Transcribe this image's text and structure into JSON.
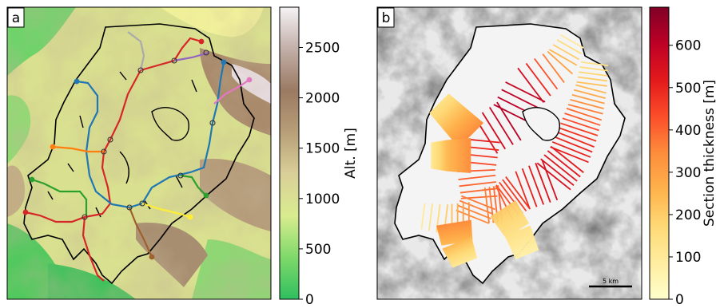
{
  "figure": {
    "panels": [
      {
        "label": "a"
      },
      {
        "label": "b"
      }
    ]
  },
  "chart_data": [
    {
      "type": "heatmap",
      "panel": "a",
      "colorbar": {
        "label": "Alt. [m]",
        "range": [
          0,
          2900
        ],
        "ticks": [
          0,
          500,
          1000,
          1500,
          2000,
          2500
        ],
        "tick_labels": [
          "0",
          "500",
          "1000",
          "1500",
          "2000",
          "2500"
        ],
        "colors": [
          "#2fbf5f",
          "#7fd96a",
          "#d9ec8f",
          "#d9cf98",
          "#b89f78",
          "#9a7a62",
          "#c2afa8",
          "#f6f2f5"
        ]
      },
      "streams": [
        {
          "color": "#d62728"
        },
        {
          "color": "#1f77b4"
        },
        {
          "color": "#ff7f0e"
        },
        {
          "color": "#2ca02c"
        },
        {
          "color": "#9467bd"
        },
        {
          "color": "#e377c2"
        },
        {
          "color": "#ffee33"
        },
        {
          "color": "#a0602d"
        },
        {
          "color": "#aaaaaa"
        }
      ]
    },
    {
      "type": "heatmap",
      "panel": "b",
      "colorbar": {
        "label": "Section thickness [m]",
        "range": [
          0,
          690
        ],
        "ticks": [
          0,
          100,
          200,
          300,
          400,
          500,
          600
        ],
        "tick_labels": [
          "0",
          "100",
          "200",
          "300",
          "400",
          "500",
          "600"
        ],
        "colors": [
          "#ffffcc",
          "#ffeda0",
          "#fed976",
          "#feb24c",
          "#fd8d3c",
          "#fc4e2a",
          "#e31a1c",
          "#bd0026",
          "#800026"
        ]
      },
      "scale_bar": {
        "label": "5 km"
      }
    }
  ]
}
